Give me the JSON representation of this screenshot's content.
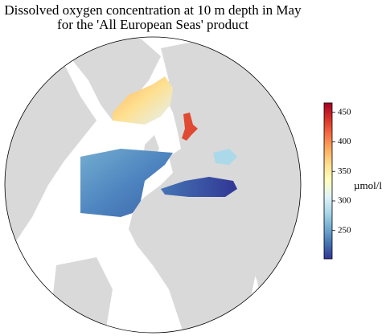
{
  "title": [
    "Dissolved oxygen concentration at 10 m depth in May",
    "for the 'All European Seas' product"
  ],
  "colorbar": {
    "label": "µmol/l",
    "lim": [
      202,
      466
    ],
    "ticks": [
      250,
      300,
      350,
      400,
      450
    ],
    "colors": [
      "#313695",
      "#4575b4",
      "#74add1",
      "#abd9e9",
      "#e0f3f8",
      "#ffffbf",
      "#fee090",
      "#fdae61",
      "#f46d43",
      "#d73027",
      "#a50026"
    ]
  }
}
